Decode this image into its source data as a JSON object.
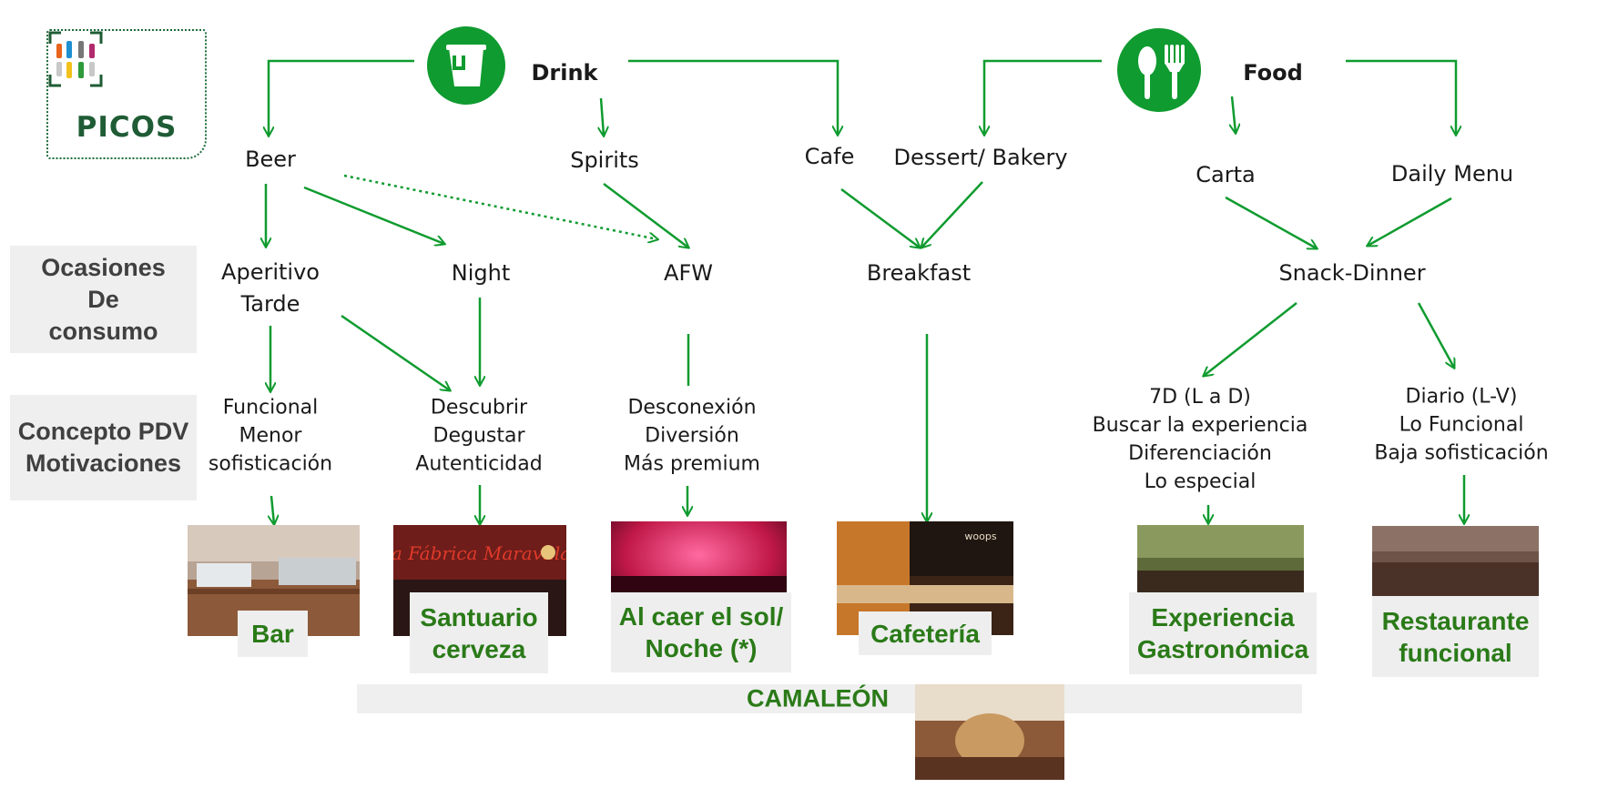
{
  "logo": {
    "text": "PICOS"
  },
  "headers": {
    "drink": "Drink",
    "food": "Food"
  },
  "level1": {
    "beer": "Beer",
    "spirits": "Spirits",
    "cafe": "Cafe",
    "dessert_bakery": "Dessert/ Bakery",
    "carta": "Carta",
    "daily_menu": "Daily Menu"
  },
  "side_labels": {
    "ocasiones": [
      "Ocasiones",
      "De",
      "consumo"
    ],
    "concepto": [
      "Concepto PDV",
      "Motivaciones"
    ]
  },
  "occasions": {
    "aperitivo": [
      "Aperitivo",
      "Tarde"
    ],
    "night": "Night",
    "afw": "AFW",
    "breakfast": "Breakfast",
    "snack_dinner": "Snack-Dinner"
  },
  "motivations": {
    "funcional": [
      "Funcional",
      "Menor",
      "sofisticación"
    ],
    "descubrir": [
      "Descubrir",
      "Degustar",
      "Autenticidad"
    ],
    "desconexion": [
      "Desconexión",
      "Diversión",
      "Más premium"
    ],
    "siete_d": [
      "7D (L a D)",
      "Buscar la experiencia",
      "Diferenciación",
      "Lo especial"
    ],
    "diario": [
      "Diario (L-V)",
      "Lo Funcional",
      "Baja sofisticación"
    ]
  },
  "concepts": {
    "bar": [
      "Bar"
    ],
    "santuario": [
      "Santuario",
      "cerveza"
    ],
    "al_caer": [
      "Al caer el sol/",
      "Noche (*)"
    ],
    "cafeteria": [
      "Cafetería"
    ],
    "experiencia": [
      "Experiencia",
      "Gastronómica"
    ],
    "restaurante": [
      "Restaurante",
      "funcional"
    ],
    "camaleon": "CAMALEÓN"
  },
  "photo_signs": {
    "santuario": "La Fábrica Maravillas",
    "cafeteria": "woops"
  },
  "colors": {
    "arrow_green": "#0f9b2f",
    "concept_green": "#2a7a18",
    "logo_green": "#1f5c35",
    "side_panel_grey": "#efefef"
  },
  "icons": {
    "drink": "drink-mug-icon",
    "food": "spoon-fork-icon",
    "logo": "bottles-icon"
  }
}
